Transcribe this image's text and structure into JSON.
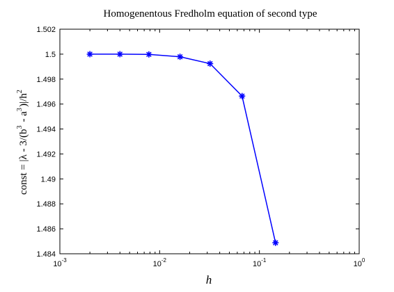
{
  "chart_data": {
    "type": "line",
    "title": "Homogenentous Fredholm equation of second type",
    "xlabel": "h",
    "ylabel": "const = |λ - 3/(b^3 - a^3)|/h^2",
    "x_scale": "log",
    "xlim": [
      0.001,
      1
    ],
    "ylim": [
      1.484,
      1.502
    ],
    "grid": false,
    "x_ticks": [
      {
        "base": "10",
        "exp": "-3"
      },
      {
        "base": "10",
        "exp": "-2"
      },
      {
        "base": "10",
        "exp": "-1"
      },
      {
        "base": "10",
        "exp": "0"
      }
    ],
    "y_ticks": [
      "1.484",
      "1.486",
      "1.488",
      "1.49",
      "1.492",
      "1.494",
      "1.496",
      "1.498",
      "1.5",
      "1.502"
    ],
    "series": [
      {
        "color": "#0000ff",
        "marker": "asterisk",
        "x": [
          0.002,
          0.004,
          0.0078,
          0.016,
          0.032,
          0.067,
          0.145
        ],
        "y": [
          1.5,
          1.5,
          1.49998,
          1.49979,
          1.49924,
          1.49664,
          1.48488
        ]
      }
    ]
  }
}
